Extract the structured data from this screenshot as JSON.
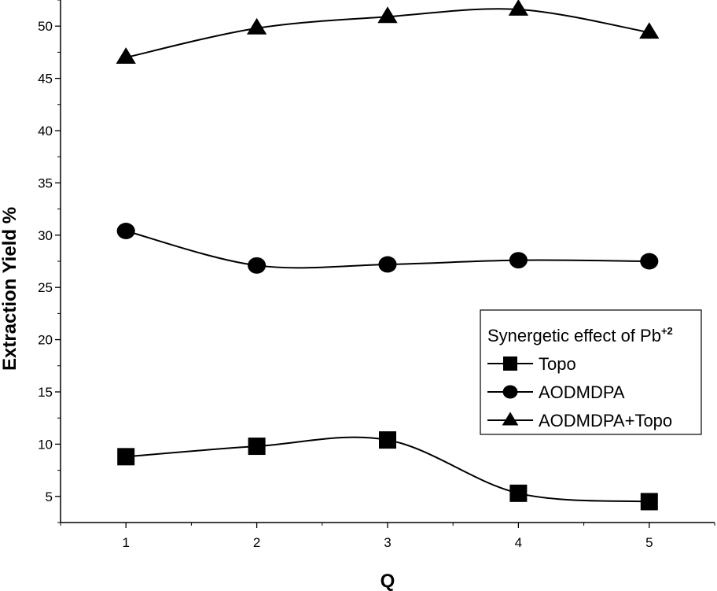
{
  "chart_data": {
    "type": "line",
    "title": "",
    "xlabel": "Q",
    "ylabel": "Extraction Yield %",
    "x": [
      1,
      2,
      3,
      4,
      5
    ],
    "xlim": [
      0.5,
      5.5
    ],
    "ylim": [
      2.5,
      52.5
    ],
    "xticks": [
      1,
      2,
      3,
      4,
      5
    ],
    "yticks": [
      5,
      10,
      15,
      20,
      25,
      30,
      35,
      40,
      45,
      50
    ],
    "grid": false,
    "legend": {
      "title": "Synergetic effect of Pb",
      "title_superscript": "+2",
      "placement": "lower-right"
    },
    "series": [
      {
        "name": "Topo",
        "marker": "square",
        "values": [
          8.8,
          9.8,
          10.4,
          5.3,
          4.5
        ]
      },
      {
        "name": "AODMDPA",
        "marker": "circle",
        "values": [
          30.4,
          27.1,
          27.2,
          27.6,
          27.5
        ]
      },
      {
        "name": "AODMDPA+Topo",
        "marker": "triangle",
        "values": [
          47.0,
          49.8,
          50.9,
          51.6,
          49.4
        ]
      }
    ]
  }
}
